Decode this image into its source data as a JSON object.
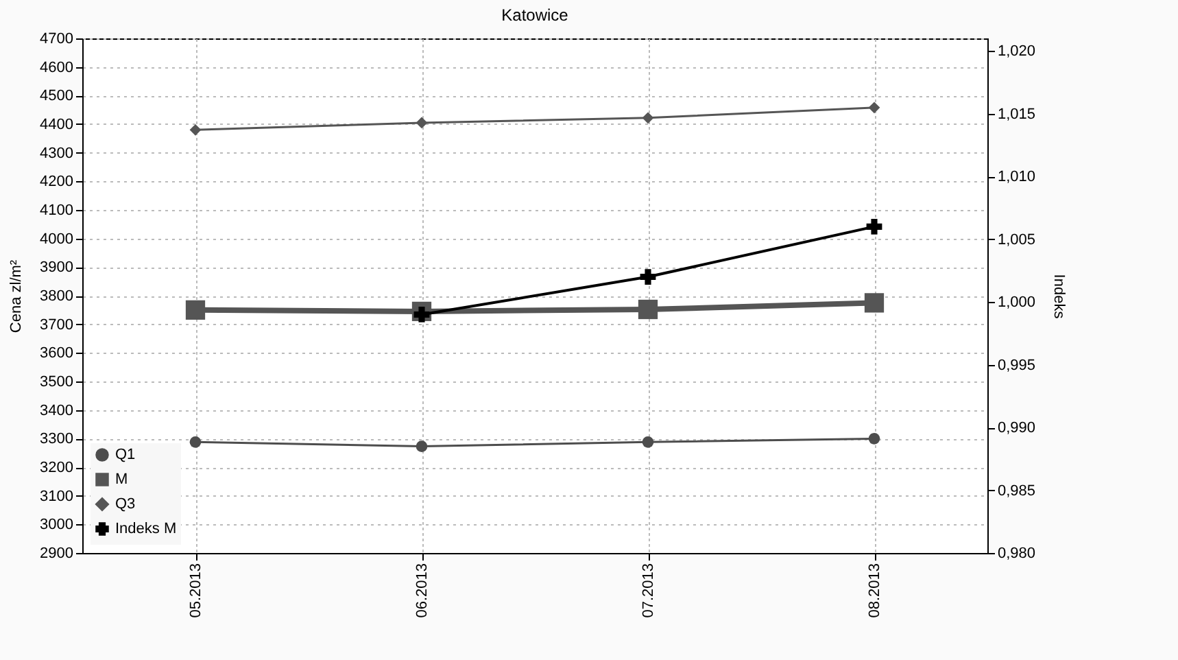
{
  "chart_data": {
    "type": "line",
    "title": "Katowice",
    "ylabel": "Cena zl/m²",
    "y2label": "Indeks",
    "categories": [
      "05.2013",
      "06.2013",
      "07.2013",
      "08.2013"
    ],
    "series": [
      {
        "name": "Q1",
        "color": "#4d4d4d",
        "marker": "circle",
        "values": [
          3288,
          3273,
          3288,
          3300
        ]
      },
      {
        "name": "M",
        "color": "#555555",
        "marker": "square",
        "values": [
          3750,
          3745,
          3752,
          3775
        ]
      },
      {
        "name": "Q3",
        "color": "#555555",
        "marker": "diamond",
        "values": [
          4380,
          4405,
          4422,
          4458
        ]
      },
      {
        "name": "Indeks M",
        "color": "#000000",
        "marker": "cross",
        "axis": "y2",
        "values": [
          null,
          0.999,
          1.002,
          1.006
        ]
      }
    ],
    "ylim": [
      2900,
      4700
    ],
    "yticks": [
      2900,
      3000,
      3100,
      3200,
      3300,
      3400,
      3500,
      3600,
      3700,
      3800,
      3900,
      4000,
      4100,
      4200,
      4300,
      4400,
      4500,
      4600,
      4700
    ],
    "y2lim": [
      0.98,
      1.021
    ],
    "y2ticks": [
      {
        "value": 0.98,
        "label": "0,980"
      },
      {
        "value": 0.985,
        "label": "0,985"
      },
      {
        "value": 0.99,
        "label": "0,990"
      },
      {
        "value": 0.995,
        "label": "0,995"
      },
      {
        "value": 1.0,
        "label": "1,000"
      },
      {
        "value": 1.005,
        "label": "1,005"
      },
      {
        "value": 1.01,
        "label": "1,010"
      },
      {
        "value": 1.015,
        "label": "1,015"
      },
      {
        "value": 1.02,
        "label": "1,020"
      }
    ],
    "grid": true,
    "legend": "bottom left",
    "line_style": "solid"
  }
}
